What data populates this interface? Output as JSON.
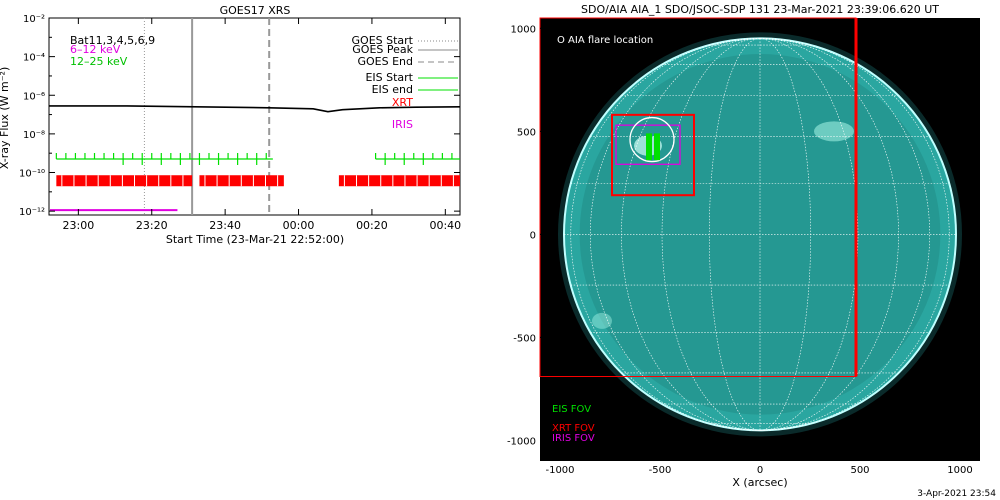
{
  "left_panel": {
    "title": "GOES17 XRS",
    "ylabel": "X-ray Flux (W m⁻²)",
    "xlabel": "Start Time (23-Mar-21 22:52:00)",
    "legend_left": {
      "line1": "Bat11,3,4,5,6,9",
      "line2": "6–12 keV",
      "line3": "12–25 keV"
    },
    "legend_right": [
      "GOES Start",
      "GOES Peak",
      "GOES End",
      "EIS Start",
      "EIS end",
      "XRT",
      "IRIS"
    ]
  },
  "right_panel": {
    "title": "SDO/AIA AIA_1 SDO/JSOC-SDP 131 23-Mar-2021 23:39:06.620 UT",
    "xlabel": "X (arcsec)",
    "flare_label": "O AIA flare location",
    "fov_labels": {
      "eis": "EIS FOV",
      "xrt": "XRT FOV",
      "iris": "IRIS FOV"
    },
    "footer": "3-Apr-2021 23:54"
  },
  "colors": {
    "eis": "#00e000",
    "xrt": "#ff0000",
    "iris": "#e000e0",
    "sun": "#2aa6a0"
  },
  "chart_data": [
    {
      "type": "line",
      "title": "GOES17 XRS",
      "xlabel": "Start Time (23-Mar-21 22:52:00)",
      "ylabel": "X-ray Flux (W m⁻²)",
      "x_tick_labels": [
        "23:00",
        "23:20",
        "23:40",
        "00:00",
        "00:20",
        "00:40"
      ],
      "y_tick_labels": [
        "10⁻¹²",
        "10⁻¹⁰",
        "10⁻⁸",
        "10⁻⁶",
        "10⁻⁴",
        "10⁻²"
      ],
      "xlim_min_from_start": [
        0,
        112
      ],
      "ylim_log10": [
        -12.2,
        -2
      ],
      "series": [
        {
          "name": "GOES flux",
          "x_min": [
            0,
            20,
            40,
            60,
            72,
            76,
            80,
            90,
            100,
            112
          ],
          "log10_y": [
            -6.55,
            -6.55,
            -6.6,
            -6.65,
            -6.7,
            -6.85,
            -6.75,
            -6.65,
            -6.62,
            -6.6
          ]
        }
      ],
      "markers_min": {
        "goes_start": 26,
        "goes_peak": 39,
        "goes_end": 60
      },
      "eis_intervals_min": [
        [
          2,
          61
        ],
        [
          89,
          112
        ]
      ],
      "xrt_intervals_min": [
        [
          2,
          39
        ],
        [
          41,
          64
        ],
        [
          79,
          112
        ]
      ],
      "iris_interval_min": [
        0,
        35
      ]
    },
    {
      "type": "scatter",
      "title": "SDO/AIA AIA_1 SDO/JSOC-SDP 131 23-Mar-2021 23:39:06.620 UT",
      "xlabel": "X (arcsec)",
      "x_tick_labels": [
        "-1000",
        "-500",
        "0",
        "500",
        "1000"
      ],
      "y_tick_labels": [
        "-1000",
        "-500",
        "0",
        "500",
        "1000"
      ],
      "xlim": [
        -1100,
        1100
      ],
      "ylim": [
        -1100,
        1050
      ],
      "solar_radius_arcsec": 980,
      "flare_location": {
        "x": -540,
        "y": 460
      },
      "xrt_fov": {
        "x1": -740,
        "y1": 190,
        "x2": -330,
        "y2": 580
      },
      "iris_fov": {
        "x1": -720,
        "y1": 340,
        "x2": -400,
        "y2": 530
      },
      "eis_fov": {
        "x1": -570,
        "y1": 360,
        "x2": -500,
        "y2": 490
      },
      "outer_fov": {
        "x1": -1100,
        "y1": -690,
        "x2": 480,
        "y2": 1050
      }
    }
  ]
}
